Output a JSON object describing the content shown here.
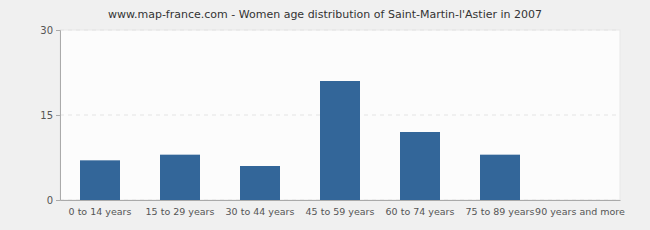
{
  "chart_data": {
    "type": "bar",
    "title": "www.map-france.com - Women age distribution of Saint-Martin-l'Astier in 2007",
    "categories": [
      "0 to 14 years",
      "15 to 29 years",
      "30 to 44 years",
      "45 to 59 years",
      "60 to 74 years",
      "75 to 89 years",
      "90 years and more"
    ],
    "values": [
      7,
      8,
      6,
      21,
      12,
      8,
      0
    ],
    "color": "#336699",
    "ylim": [
      0,
      30
    ],
    "yticks": [
      0,
      15,
      30
    ],
    "grid": true
  }
}
